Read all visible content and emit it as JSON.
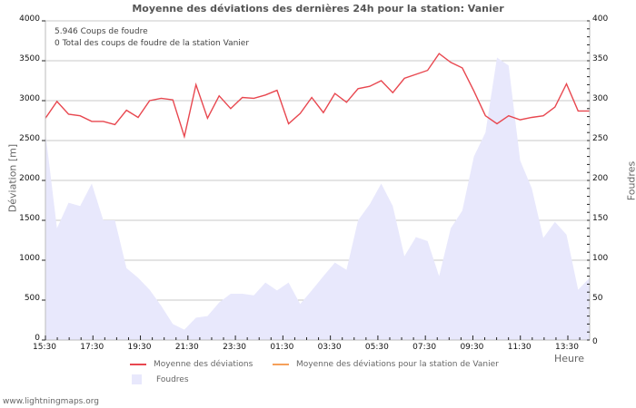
{
  "title": "Moyenne des déviations des dernières 24h pour la station: Vanier",
  "info": {
    "line1": "5.946  Coups de foudre",
    "line2": "0 Total des coups de foudre de la station Vanier"
  },
  "axes": {
    "left_label": "Déviation  [m]",
    "right_label": "Foudres",
    "x_label": "Heure",
    "left_ticks": [
      "0",
      "500",
      "1000",
      "1500",
      "2000",
      "2500",
      "3000",
      "3500",
      "4000"
    ],
    "right_ticks": [
      "0",
      "50",
      "100",
      "150",
      "200",
      "250",
      "300",
      "350",
      "400"
    ],
    "x_ticks": [
      "15:30",
      "17:30",
      "19:30",
      "21:30",
      "23:30",
      "01:30",
      "03:30",
      "05:30",
      "07:30",
      "09:30",
      "11:30",
      "13:30"
    ]
  },
  "legend": {
    "item1": "Moyenne des déviations",
    "item2": "Moyenne des déviations pour la station de Vanier",
    "item3": "Foudres"
  },
  "colors": {
    "deviation_line": "#e8474f",
    "station_line": "#f5a05a",
    "foudres_fill": "#e8e8fc",
    "grid": "#c8c8c8"
  },
  "footer": "www.lightningmaps.org",
  "chart_data": {
    "type": "line",
    "title": "Moyenne des déviations des dernières 24h pour la station: Vanier",
    "xlabel": "Heure",
    "ylabel": "Déviation [m]",
    "y2label": "Foudres",
    "ylim": [
      0,
      4000
    ],
    "y2lim": [
      0,
      400
    ],
    "grid": true,
    "legend_position": "bottom",
    "x": [
      "15:30",
      "16:00",
      "16:30",
      "17:00",
      "17:30",
      "18:00",
      "18:30",
      "19:00",
      "19:30",
      "20:00",
      "20:30",
      "21:00",
      "21:30",
      "22:00",
      "22:30",
      "23:00",
      "23:30",
      "00:00",
      "00:30",
      "01:00",
      "01:30",
      "02:00",
      "02:30",
      "03:00",
      "03:30",
      "04:00",
      "04:30",
      "05:00",
      "05:30",
      "06:00",
      "06:30",
      "07:00",
      "07:30",
      "08:00",
      "08:30",
      "09:00",
      "09:30",
      "10:00",
      "10:30",
      "11:00",
      "11:30",
      "12:00",
      "12:30",
      "13:00",
      "13:30",
      "14:00",
      "14:30",
      "15:00"
    ],
    "series": [
      {
        "name": "Moyenne des déviations",
        "type": "line",
        "axis": "left",
        "values": [
          2780,
          2990,
          2830,
          2810,
          2740,
          2740,
          2700,
          2880,
          2790,
          3000,
          3030,
          3010,
          2550,
          3200,
          2780,
          3060,
          2900,
          3040,
          3030,
          3070,
          3130,
          2710,
          2840,
          3040,
          2850,
          3090,
          2980,
          3150,
          3180,
          3250,
          3100,
          3280,
          3330,
          3380,
          3590,
          3480,
          3410,
          3120,
          2810,
          2710,
          2810,
          2760,
          2790,
          2810,
          2920,
          3210,
          2870,
          2870
        ]
      },
      {
        "name": "Moyenne des déviations pour la station de Vanier",
        "type": "line",
        "axis": "left",
        "values": []
      },
      {
        "name": "Foudres",
        "type": "area",
        "axis": "right",
        "values": [
          260,
          140,
          172,
          168,
          196,
          150,
          150,
          90,
          78,
          63,
          43,
          20,
          13,
          28,
          30,
          47,
          58,
          58,
          56,
          72,
          62,
          72,
          45,
          62,
          80,
          97,
          88,
          150,
          170,
          196,
          168,
          105,
          129,
          124,
          80,
          140,
          162,
          230,
          260,
          354,
          344,
          225,
          190,
          128,
          148,
          132,
          63,
          78
        ]
      }
    ]
  }
}
